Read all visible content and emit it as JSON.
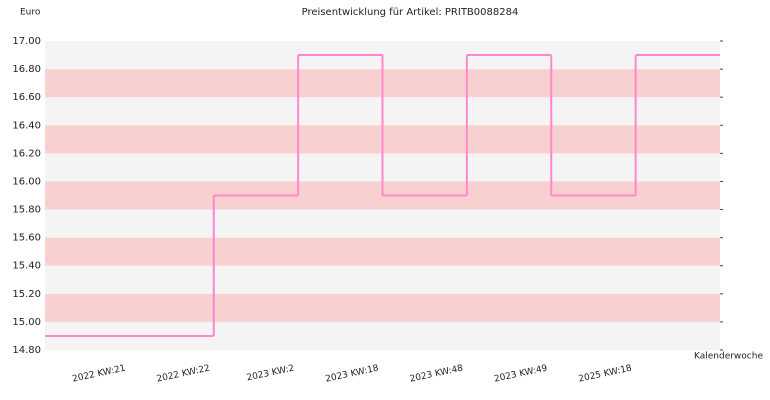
{
  "chart_data": {
    "type": "step",
    "title": "Preisentwicklung für Artikel: PRITB0088284",
    "y_label": "Euro",
    "x_label": "Kalenderwoche",
    "categories": [
      "2022 KW:21",
      "2022 KW:22",
      "2023 KW:2",
      "2023 KW:18",
      "2023 KW:48",
      "2023 KW:49",
      "2025 KW:18"
    ],
    "values": [
      14.9,
      15.9,
      16.9,
      15.9,
      16.9,
      15.9,
      16.9
    ],
    "color": "#ff88cc",
    "band_colors": [
      "#f4f4f4",
      "#f8d0d0"
    ],
    "ylim": [
      14.8,
      17.0
    ],
    "yticks": [
      {
        "value": 14.8,
        "label": "14.80"
      },
      {
        "value": 15.0,
        "label": "15.00"
      },
      {
        "value": 15.2,
        "label": "15.20"
      },
      {
        "value": 15.4,
        "label": "15.40"
      },
      {
        "value": 15.6,
        "label": "15.60"
      },
      {
        "value": 15.8,
        "label": "15.80"
      },
      {
        "value": 16.0,
        "label": "16.00"
      },
      {
        "value": 16.2,
        "label": "16.20"
      },
      {
        "value": 16.4,
        "label": "16.40"
      },
      {
        "value": 16.6,
        "label": "16.60"
      },
      {
        "value": 16.8,
        "label": "16.80"
      },
      {
        "value": 17.0,
        "label": "17.00"
      }
    ]
  }
}
